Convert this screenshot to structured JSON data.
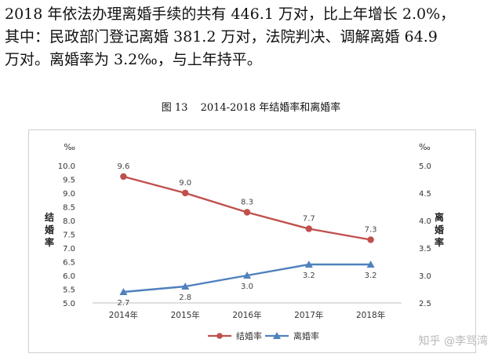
{
  "paragraph": {
    "lines": [
      "2018 年依法办理离婚手续的共有 446.1 万对，比上年增长 2.0%，",
      "其中：民政部门登记离婚 381.2 万对，法院判决、调解离婚 64.9",
      "万对。离婚率为 3.2‰，与上年持平。"
    ]
  },
  "figure": {
    "number": "图 13",
    "title": "2014-2018 年结婚率和离婚率"
  },
  "chart_data": {
    "type": "line",
    "categories": [
      "2014年",
      "2015年",
      "2016年",
      "2017年",
      "2018年"
    ],
    "series": [
      {
        "name": "结婚率",
        "axis": "left",
        "color": "#c0504d",
        "marker": "circle",
        "values": [
          9.6,
          9.0,
          8.3,
          7.7,
          7.3
        ],
        "labels": [
          "9.6",
          "9.0",
          "8.3",
          "7.7",
          "7.3"
        ]
      },
      {
        "name": "离婚率",
        "axis": "right",
        "color": "#4f81bd",
        "marker": "triangle",
        "values": [
          2.7,
          2.8,
          3.0,
          3.2,
          3.2
        ],
        "labels": [
          "2.7",
          "2.8",
          "3.0",
          "3.2",
          "3.2"
        ]
      }
    ],
    "left_axis": {
      "label": "结婚率",
      "unit": "‰",
      "min": 5.0,
      "max": 10.0,
      "ticks": [
        "5.0",
        "5.5",
        "6.0",
        "6.5",
        "7.0",
        "7.5",
        "8.0",
        "8.5",
        "9.0",
        "9.5",
        "10.0"
      ]
    },
    "right_axis": {
      "label": "离婚率",
      "unit": "‰",
      "min": 2.5,
      "max": 5.0,
      "ticks": [
        "2.5",
        "3.0",
        "3.5",
        "4.0",
        "4.5",
        "5.0"
      ]
    },
    "grid": false,
    "legend": "bottom"
  },
  "watermark": "知乎 @李骂湾"
}
